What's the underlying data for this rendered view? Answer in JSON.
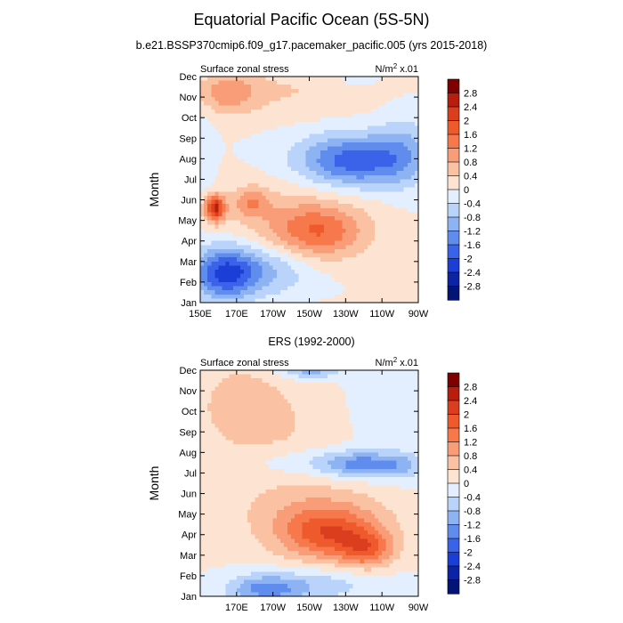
{
  "chart_data": [
    {
      "type": "heatmap",
      "title": "Equatorial Pacific Ocean (5S-5N)",
      "subtitle": "b.e21.BSSP370cmip6.f09_g17.pacemaker_pacific.005 (yrs 2015-2018)",
      "left_label": "Surface zonal stress",
      "right_label": "N/m",
      "right_label_sup": "2",
      "right_label_suffix": " x.01",
      "ylabel": "Month",
      "x_ticks": [
        "150E",
        "170E",
        "170W",
        "150W",
        "130W",
        "110W",
        "90W"
      ],
      "y_ticks": [
        "Jan",
        "Feb",
        "Mar",
        "Apr",
        "May",
        "Jun",
        "Jul",
        "Aug",
        "Sep",
        "Oct",
        "Nov",
        "Dec"
      ],
      "xlim": [
        150,
        270
      ],
      "colorbar_levels": [
        "2.8",
        "2.4",
        "2",
        "1.6",
        "1.2",
        "0.8",
        "0.4",
        "0",
        "-0.4",
        "-0.8",
        "-1.2",
        "-1.6",
        "-2",
        "-2.4",
        "-2.8"
      ],
      "colorbar_colors": [
        "#7f0000",
        "#b81d0e",
        "#db3e1e",
        "#ef5a2d",
        "#f6784b",
        "#f89d77",
        "#fbc1a3",
        "#fde3d1",
        "#e3efff",
        "#b9d3fa",
        "#8db3f3",
        "#5f8ced",
        "#3a63ea",
        "#1b3fd6",
        "#0d23a5",
        "#041476"
      ],
      "features": [
        {
          "lon": 158,
          "month": 4.6,
          "val": 2.4,
          "sx": 4,
          "sy": 0.45
        },
        {
          "lon": 178,
          "month": 4.9,
          "val": 0.9,
          "sx": 7,
          "sy": 0.5
        },
        {
          "lon": 215,
          "month": 3.4,
          "val": 1.3,
          "sx": 18,
          "sy": 0.9
        },
        {
          "lon": 200,
          "month": 4.2,
          "val": 0.5,
          "sx": 30,
          "sy": 1.3
        },
        {
          "lon": 165,
          "month": 10.2,
          "val": 0.9,
          "sx": 12,
          "sy": 0.7
        },
        {
          "lon": 200,
          "month": 10.3,
          "val": 0.4,
          "sx": 35,
          "sy": 0.9
        },
        {
          "lon": 235,
          "month": 6.9,
          "val": -1.9,
          "sx": 22,
          "sy": 0.9
        },
        {
          "lon": 262,
          "month": 7.5,
          "val": -0.6,
          "sx": 10,
          "sy": 1.3
        },
        {
          "lon": 163,
          "month": 1.4,
          "val": -1.9,
          "sx": 12,
          "sy": 0.9
        },
        {
          "lon": 185,
          "month": 1.6,
          "val": -0.9,
          "sx": 18,
          "sy": 0.9
        },
        {
          "lon": 152,
          "month": 7,
          "val": -0.3,
          "sx": 4,
          "sy": 2
        },
        {
          "lon": 235,
          "month": 10.9,
          "val": -0.3,
          "sx": 10,
          "sy": 0.5
        }
      ]
    },
    {
      "type": "heatmap",
      "title": "ERS (1992-2000)",
      "left_label": "Surface zonal stress",
      "right_label": "N/m",
      "right_label_sup": "2",
      "right_label_suffix": " x.01",
      "ylabel": "Month",
      "x_ticks": [
        "170E",
        "170W",
        "150W",
        "130W",
        "110W",
        "90W"
      ],
      "y_ticks": [
        "Jan",
        "Feb",
        "Mar",
        "Apr",
        "May",
        "Jun",
        "Jul",
        "Aug",
        "Sep",
        "Oct",
        "Nov",
        "Dec"
      ],
      "xlim": [
        150,
        270
      ],
      "colorbar_levels": [
        "2.8",
        "2.4",
        "2",
        "1.6",
        "1.2",
        "0.8",
        "0.4",
        "0",
        "-0.4",
        "-0.8",
        "-1.2",
        "-1.6",
        "-2",
        "-2.4",
        "-2.8"
      ],
      "colorbar_colors": [
        "#7f0000",
        "#b81d0e",
        "#db3e1e",
        "#ef5a2d",
        "#f6784b",
        "#f89d77",
        "#fbc1a3",
        "#fde3d1",
        "#e3efff",
        "#b9d3fa",
        "#8db3f3",
        "#5f8ced",
        "#3a63ea",
        "#1b3fd6",
        "#0d23a5",
        "#041476"
      ],
      "features": [
        {
          "lon": 222,
          "month": 3.0,
          "val": 1.7,
          "sx": 20,
          "sy": 0.9
        },
        {
          "lon": 242,
          "month": 2.2,
          "val": 1.2,
          "sx": 10,
          "sy": 0.6
        },
        {
          "lon": 210,
          "month": 4.2,
          "val": 0.6,
          "sx": 30,
          "sy": 1.2
        },
        {
          "lon": 240,
          "month": 6.4,
          "val": -1.3,
          "sx": 15,
          "sy": 0.45
        },
        {
          "lon": 210,
          "month": 6.5,
          "val": -0.5,
          "sx": 25,
          "sy": 0.5
        },
        {
          "lon": 262,
          "month": 6.3,
          "val": -0.6,
          "sx": 8,
          "sy": 0.5
        },
        {
          "lon": 185,
          "month": 0.3,
          "val": -1.3,
          "sx": 15,
          "sy": 0.5
        },
        {
          "lon": 215,
          "month": 0.6,
          "val": -0.6,
          "sx": 25,
          "sy": 0.6
        },
        {
          "lon": 210,
          "month": 11.0,
          "val": -1.0,
          "sx": 12,
          "sy": 0.3
        },
        {
          "lon": 172,
          "month": 9.5,
          "val": 0.5,
          "sx": 20,
          "sy": 1.7
        },
        {
          "lon": 195,
          "month": 8.0,
          "val": 0.3,
          "sx": 25,
          "sy": 1.5
        },
        {
          "lon": 250,
          "month": 9.2,
          "val": -0.3,
          "sx": 12,
          "sy": 1.3
        }
      ]
    }
  ]
}
